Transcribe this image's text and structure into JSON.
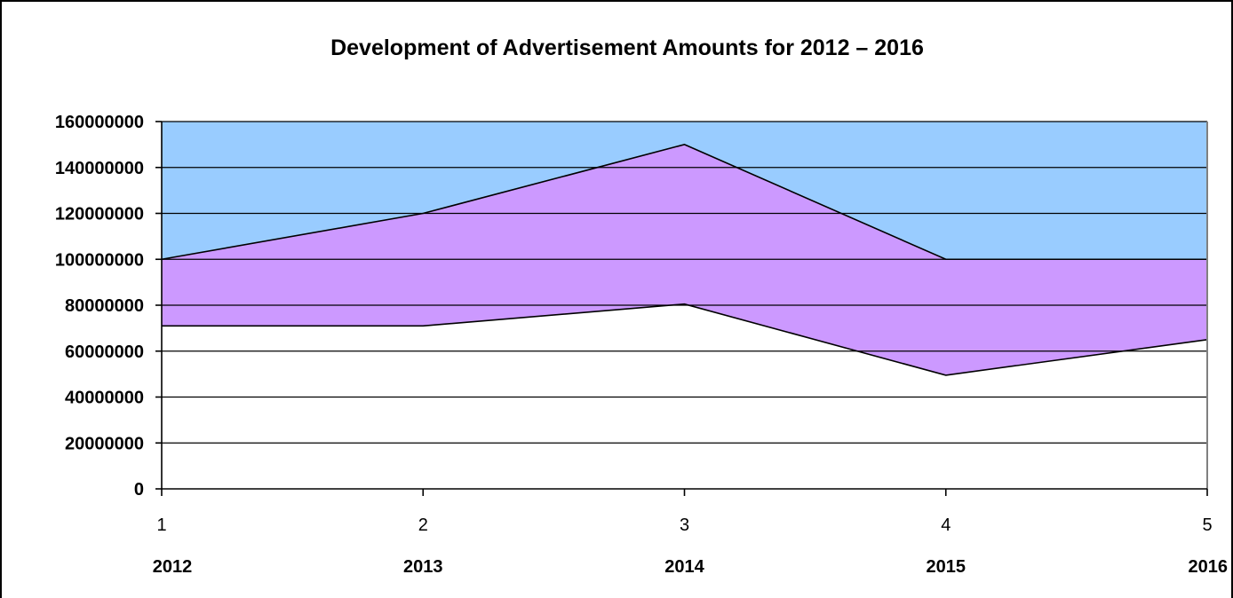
{
  "chart_data": {
    "type": "area",
    "title": "Development of Advertisement Amounts for 2012 – 2016",
    "xlabel": "",
    "ylabel": "",
    "x": [
      1,
      2,
      3,
      4,
      5
    ],
    "x_tick_labels": [
      "1",
      "2",
      "3",
      "4",
      "5"
    ],
    "categories": [
      "2012",
      "2013",
      "2014",
      "2015",
      "2016"
    ],
    "ylim": [
      0,
      160000000
    ],
    "y_ticks": [
      0,
      20000000,
      40000000,
      60000000,
      80000000,
      100000000,
      120000000,
      140000000,
      160000000
    ],
    "y_tick_labels": [
      "0",
      "20000000",
      "40000000",
      "60000000",
      "80000000",
      "100000000",
      "120000000",
      "140000000",
      "160000000"
    ],
    "grid": true,
    "stacked": true,
    "series": [
      {
        "values": [
          71000000,
          71000000,
          80500000,
          49500000,
          65000000
        ],
        "color": "#ffffff"
      },
      {
        "values": [
          29000000,
          49000000,
          69500000,
          50500000,
          35000000
        ],
        "color": "#cc99ff"
      },
      {
        "values": [
          60000000,
          40000000,
          10000000,
          60000000,
          60000000
        ],
        "color": "#99ccff"
      }
    ]
  }
}
